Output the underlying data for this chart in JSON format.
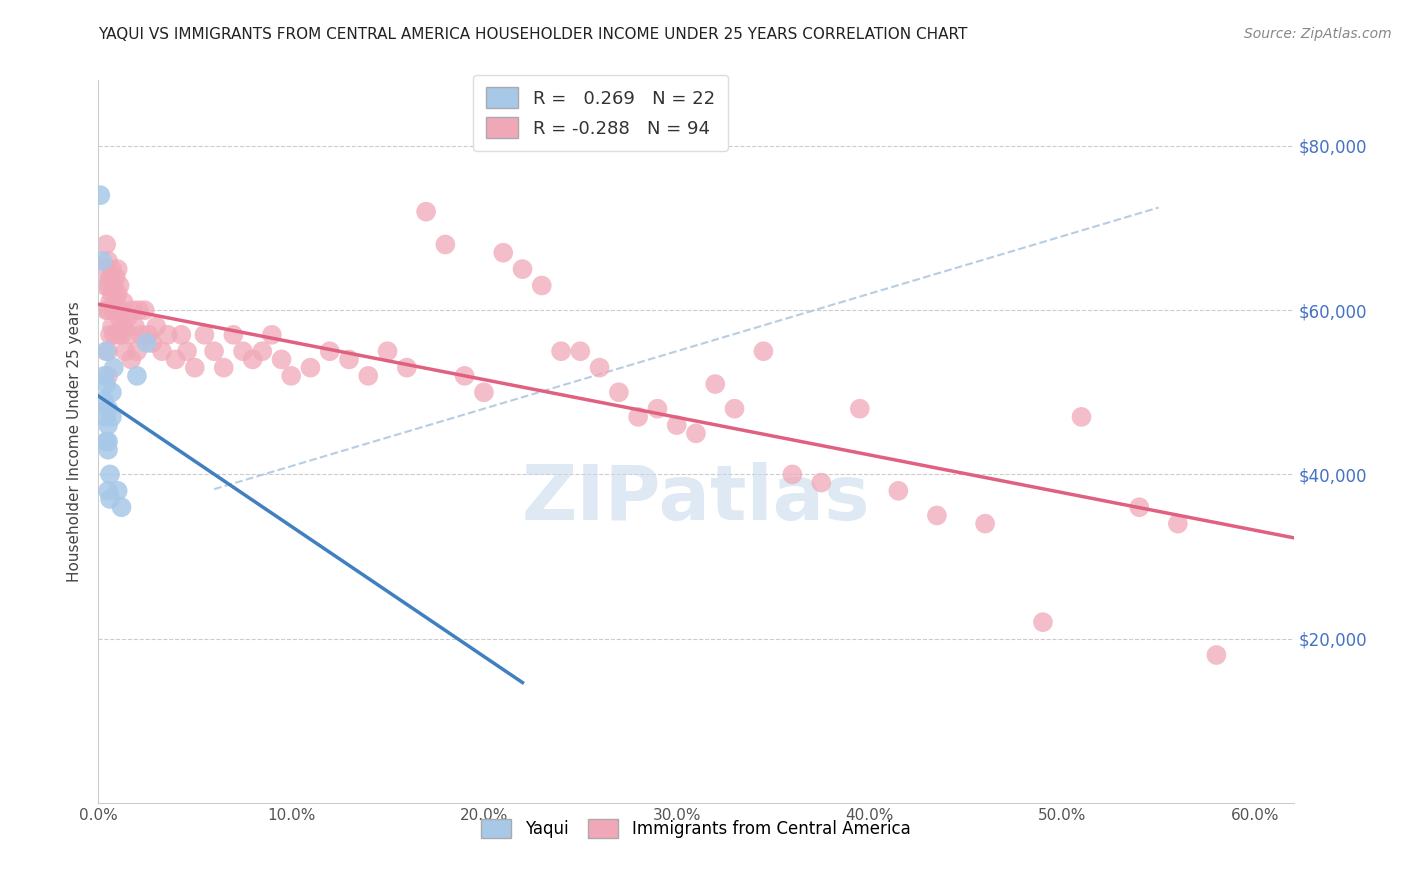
{
  "title": "YAQUI VS IMMIGRANTS FROM CENTRAL AMERICA HOUSEHOLDER INCOME UNDER 25 YEARS CORRELATION CHART",
  "source": "Source: ZipAtlas.com",
  "ylabel": "Householder Income Under 25 years",
  "yaqui_R": 0.269,
  "yaqui_N": 22,
  "immigrant_R": -0.288,
  "immigrant_N": 94,
  "watermark": "ZIPatlas",
  "yaqui_color": "#a8c8e8",
  "immigrant_color": "#f0a8b8",
  "yaqui_line_color": "#4080c0",
  "immigrant_line_color": "#e06080",
  "dashed_line_color": "#b0c8e0",
  "xlim": [
    0.0,
    0.62
  ],
  "ylim": [
    0,
    88000
  ],
  "yaqui_x": [
    0.001,
    0.002,
    0.003,
    0.003,
    0.004,
    0.004,
    0.004,
    0.004,
    0.005,
    0.005,
    0.005,
    0.005,
    0.005,
    0.006,
    0.006,
    0.007,
    0.007,
    0.008,
    0.01,
    0.012,
    0.02,
    0.025
  ],
  "yaqui_y": [
    74000,
    66000,
    52000,
    49000,
    47000,
    44000,
    55000,
    51000,
    48000,
    46000,
    44000,
    43000,
    38000,
    40000,
    37000,
    50000,
    47000,
    53000,
    38000,
    36000,
    52000,
    56000
  ],
  "immig_x": [
    0.003,
    0.004,
    0.004,
    0.004,
    0.005,
    0.005,
    0.005,
    0.005,
    0.005,
    0.006,
    0.006,
    0.006,
    0.007,
    0.007,
    0.007,
    0.008,
    0.008,
    0.008,
    0.009,
    0.009,
    0.01,
    0.01,
    0.01,
    0.01,
    0.011,
    0.011,
    0.012,
    0.012,
    0.013,
    0.013,
    0.014,
    0.015,
    0.016,
    0.017,
    0.018,
    0.019,
    0.02,
    0.021,
    0.022,
    0.024,
    0.026,
    0.028,
    0.03,
    0.033,
    0.036,
    0.04,
    0.043,
    0.046,
    0.05,
    0.055,
    0.06,
    0.065,
    0.07,
    0.075,
    0.08,
    0.085,
    0.09,
    0.095,
    0.1,
    0.11,
    0.12,
    0.13,
    0.14,
    0.15,
    0.16,
    0.17,
    0.18,
    0.19,
    0.2,
    0.21,
    0.22,
    0.23,
    0.24,
    0.25,
    0.26,
    0.27,
    0.28,
    0.29,
    0.3,
    0.31,
    0.32,
    0.33,
    0.345,
    0.36,
    0.375,
    0.395,
    0.415,
    0.435,
    0.46,
    0.49,
    0.51,
    0.54,
    0.56,
    0.58
  ],
  "immig_y": [
    63000,
    68000,
    65000,
    60000,
    66000,
    63000,
    60000,
    55000,
    52000,
    64000,
    61000,
    57000,
    65000,
    62000,
    58000,
    63000,
    60000,
    57000,
    64000,
    61000,
    65000,
    62000,
    60000,
    57000,
    63000,
    59000,
    60000,
    57000,
    61000,
    58000,
    55000,
    59000,
    57000,
    54000,
    60000,
    58000,
    55000,
    60000,
    57000,
    60000,
    57000,
    56000,
    58000,
    55000,
    57000,
    54000,
    57000,
    55000,
    53000,
    57000,
    55000,
    53000,
    57000,
    55000,
    54000,
    55000,
    57000,
    54000,
    52000,
    53000,
    55000,
    54000,
    52000,
    55000,
    53000,
    72000,
    68000,
    52000,
    50000,
    67000,
    65000,
    63000,
    55000,
    55000,
    53000,
    50000,
    47000,
    48000,
    46000,
    45000,
    51000,
    48000,
    55000,
    40000,
    39000,
    48000,
    38000,
    35000,
    34000,
    22000,
    47000,
    36000,
    34000,
    18000
  ]
}
